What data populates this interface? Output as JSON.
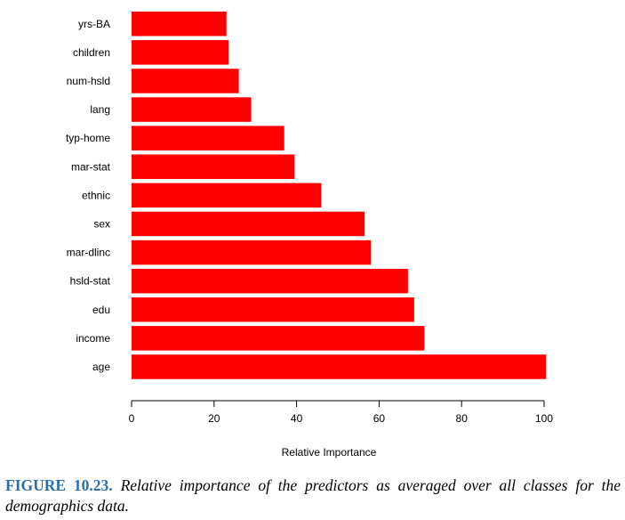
{
  "chart_data": {
    "type": "bar",
    "orientation": "horizontal",
    "categories": [
      "yrs-BA",
      "children",
      "num-hsld",
      "lang",
      "typ-home",
      "mar-stat",
      "ethnic",
      "sex",
      "mar-dlinc",
      "hsld-stat",
      "edu",
      "income",
      "age"
    ],
    "values": [
      23,
      23.5,
      26,
      29,
      37,
      39.5,
      46,
      56.5,
      58,
      67,
      68.5,
      71,
      100.5
    ],
    "xlabel": "Relative Importance",
    "xlim": [
      0,
      100
    ],
    "xticks": [
      "0",
      "20",
      "40",
      "60",
      "80",
      "100"
    ],
    "bar_color": "#ff0000",
    "grid": false
  },
  "caption": {
    "number": "FIGURE 10.23.",
    "text": "Relative importance of the predictors as averaged over all classes for the demographics data."
  }
}
